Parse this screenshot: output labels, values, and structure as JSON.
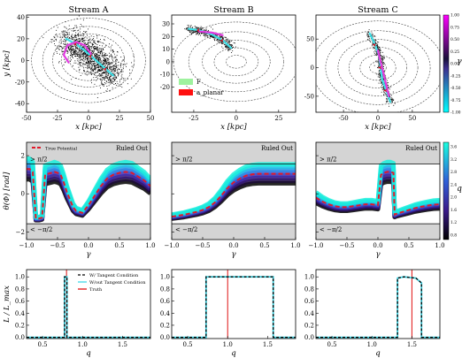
{
  "chart_data": [
    {
      "type": "scatter",
      "panel": "top",
      "titles": [
        "Stream A",
        "Stream B",
        "Stream C"
      ],
      "xlabel": "x [kpc]",
      "ylabel": "y [kpc]",
      "panels": [
        {
          "xlim": [
            -50,
            50
          ],
          "ylim": [
            -48,
            42
          ],
          "xticks": [
            -50,
            -25,
            0,
            25,
            50
          ],
          "yticks": [
            -40,
            -20,
            0,
            20,
            40
          ],
          "contour_radii": [
            8,
            15,
            22,
            29,
            37,
            46
          ],
          "stream_cyan": [
            [
              -18,
              20
            ],
            [
              -10,
              15
            ],
            [
              -4,
              10
            ],
            [
              2,
              4
            ],
            [
              8,
              -2
            ],
            [
              14,
              -8
            ],
            [
              20,
              -14
            ]
          ],
          "stream_magenta": [
            [
              -16,
              -2
            ],
            [
              -20,
              5
            ],
            [
              -17,
              14
            ],
            [
              -10,
              17
            ],
            [
              -3,
              14
            ],
            [
              2,
              6
            ]
          ]
        },
        {
          "xlim": [
            -38,
            35
          ],
          "ylim": [
            -40,
            37
          ],
          "xticks": [
            -25,
            0,
            25
          ],
          "yticks": [
            -20,
            -10,
            0,
            10,
            20,
            30
          ],
          "contour_radii": [
            6,
            13,
            20,
            28,
            37
          ],
          "stream_cyan": [
            [
              -28,
              26
            ],
            [
              -22,
              25
            ],
            [
              -15,
              22
            ],
            [
              -8,
              17
            ],
            [
              -3,
              11
            ]
          ],
          "stream_magenta": [
            [
              -22,
              24
            ],
            [
              -14,
              23
            ],
            [
              -8,
              21
            ]
          ],
          "legend": [
            "F",
            "a_planar"
          ]
        },
        {
          "xlim": [
            -90,
            90
          ],
          "ylim": [
            -78,
            92
          ],
          "xticks": [
            -50,
            0,
            50
          ],
          "yticks": [
            -50,
            0,
            50
          ],
          "contour_radii": [
            12,
            26,
            42,
            58,
            76,
            96
          ],
          "stream_cyan": [
            [
              -12,
              60
            ],
            [
              -4,
              40
            ],
            [
              2,
              20
            ],
            [
              4,
              0
            ],
            [
              6,
              -20
            ],
            [
              12,
              -40
            ],
            [
              18,
              -60
            ]
          ],
          "stream_magenta": [
            [
              0,
              30
            ],
            [
              4,
              10
            ],
            [
              8,
              -10
            ],
            [
              12,
              -30
            ],
            [
              16,
              -50
            ]
          ]
        }
      ],
      "colorbar": {
        "label": "γ",
        "range": [
          -1.0,
          1.0
        ],
        "ticks": [
          "1.00",
          "0.75",
          "0.50",
          "0.25",
          "0.00",
          "-0.25",
          "-0.50",
          "-0.75",
          "-1.00"
        ]
      }
    },
    {
      "type": "line",
      "panel": "middle",
      "xlabel": "γ",
      "ylabel": "θ(Φ) [rad]",
      "xlim": [
        -1.0,
        1.0
      ],
      "ylim": [
        -2.4,
        2.7
      ],
      "xticks": [
        -1.0,
        -0.5,
        0.0,
        0.5,
        1.0
      ],
      "yticks": [
        -2,
        0,
        2
      ],
      "ruled_out_upper": 1.5708,
      "ruled_out_lower": -1.5708,
      "labels": {
        "ruled_out": "Ruled Out",
        "upper": "> π/2",
        "lower": "< −π/2",
        "true_potential": "True Potential"
      },
      "series": [
        {
          "x": [
            -1.0,
            -0.95,
            -0.9,
            -0.85,
            -0.8,
            -0.75,
            -0.7,
            -0.65,
            -0.6,
            -0.55,
            -0.5,
            -0.45,
            -0.4,
            -0.35,
            -0.3,
            -0.25,
            -0.2,
            -0.1,
            0.0,
            0.1,
            0.2,
            0.3,
            0.4,
            0.5,
            0.6,
            0.7,
            0.8,
            0.9,
            1.0
          ],
          "y": [
            1.3,
            1.3,
            1.15,
            -1.3,
            -1.3,
            -1.25,
            1.0,
            1.05,
            1.1,
            1.15,
            1.1,
            1.0,
            0.6,
            0.1,
            -0.3,
            -0.7,
            -0.9,
            -1.0,
            -0.6,
            -0.1,
            0.4,
            0.8,
            1.0,
            1.1,
            1.15,
            1.1,
            0.9,
            0.7,
            0.4
          ]
        },
        {
          "x": [
            -1.0,
            -0.8,
            -0.6,
            -0.5,
            -0.4,
            -0.3,
            -0.2,
            -0.1,
            0.0,
            0.1,
            0.2,
            0.3,
            0.4,
            0.5,
            0.6,
            0.7,
            0.8,
            0.9,
            1.0
          ],
          "y": [
            -1.2,
            -1.1,
            -0.95,
            -0.85,
            -0.7,
            -0.45,
            -0.1,
            0.3,
            0.6,
            0.8,
            0.95,
            1.02,
            1.05,
            1.05,
            1.05,
            1.05,
            1.05,
            1.05,
            1.05
          ]
        },
        {
          "x": [
            -1.0,
            -0.9,
            -0.8,
            -0.7,
            -0.6,
            -0.5,
            -0.4,
            -0.3,
            -0.2,
            -0.1,
            0.0,
            0.05,
            0.1,
            0.15,
            0.2,
            0.25,
            0.27,
            0.3,
            0.4,
            0.5,
            0.6,
            0.7,
            0.8,
            0.9,
            1.0
          ],
          "y": [
            -0.2,
            -0.4,
            -0.55,
            -0.65,
            -0.7,
            -0.7,
            -0.65,
            -0.6,
            -0.55,
            -0.55,
            -0.6,
            1.0,
            1.1,
            1.15,
            1.15,
            1.1,
            -1.1,
            -1.05,
            -0.95,
            -0.85,
            -0.75,
            -0.68,
            -0.62,
            -0.57,
            -0.55
          ]
        }
      ],
      "colorbar": {
        "label": "q",
        "range": [
          0.5,
          3.8
        ],
        "ticks": [
          "3.6",
          "3.2",
          "2.8",
          "2.4",
          "2.0",
          "1.6",
          "1.2",
          "0.8"
        ]
      }
    },
    {
      "type": "line",
      "panel": "bottom",
      "xlabel": "q",
      "ylabel": "L / L_max",
      "ylim": [
        -0.02,
        1.12
      ],
      "yticks": [
        0.0,
        0.2,
        0.4,
        0.6,
        0.8,
        1.0
      ],
      "legend": [
        "W/ Tangent Condition",
        "W/out Tangent Condition",
        "Truth"
      ],
      "panels": [
        {
          "xlim": [
            0.3,
            1.85
          ],
          "xticks": [
            0.5,
            1.0,
            1.5
          ],
          "truth": 0.8,
          "step_x": [
            0.3,
            0.775,
            0.775,
            0.805,
            0.805,
            1.85
          ],
          "step_y": [
            0,
            0,
            1.0,
            1.0,
            0,
            0
          ]
        },
        {
          "xlim": [
            0.3,
            1.85
          ],
          "xticks": [
            0.5,
            1.0,
            1.5
          ],
          "truth": 1.0,
          "step_x": [
            0.3,
            0.73,
            0.73,
            1.57,
            1.57,
            1.85
          ],
          "step_y": [
            0,
            0,
            1.0,
            1.0,
            0,
            0
          ]
        },
        {
          "xlim": [
            0.3,
            1.85
          ],
          "xticks": [
            0.5,
            1.0,
            1.5
          ],
          "truth": 1.5,
          "step_x": [
            0.3,
            1.32,
            1.32,
            1.4,
            1.55,
            1.62,
            1.62,
            1.85
          ],
          "step_y": [
            0,
            0,
            0.98,
            1.0,
            0.98,
            0.9,
            0,
            0
          ]
        }
      ]
    }
  ]
}
